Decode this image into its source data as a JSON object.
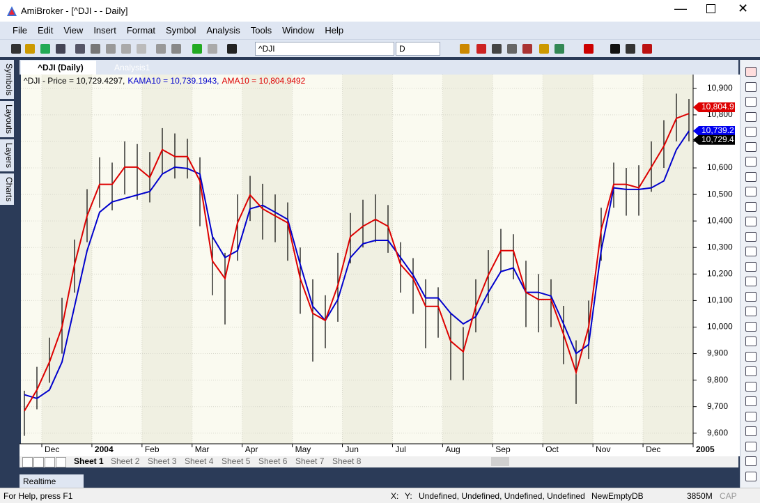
{
  "window": {
    "title": "AmiBroker - [^DJI -  - Daily]"
  },
  "menu": [
    "File",
    "Edit",
    "View",
    "Insert",
    "Format",
    "Symbol",
    "Analysis",
    "Tools",
    "Window",
    "Help"
  ],
  "toolbar": {
    "symbol": "^DJI",
    "interval": "D"
  },
  "side_tabs": [
    "Symbols",
    "Layouts",
    "Layers",
    "Charts"
  ],
  "tabs": [
    "^DJI (Daily)",
    "Analysis1"
  ],
  "chart_data": {
    "type": "line",
    "header": [
      "^DJI - Price = 10,729.4297,",
      "KAMA10 = 10,739.1943,",
      "AMA10 = 10,804.9492"
    ],
    "header_colors": [
      "#000000",
      "#0000cc",
      "#dd0000"
    ],
    "ylim": [
      9560,
      10952
    ],
    "yticks": [
      {
        "value": 9600,
        "label": "9,600"
      },
      {
        "value": 9700,
        "label": "9,700"
      },
      {
        "value": 9800,
        "label": "9,800"
      },
      {
        "value": 9900,
        "label": "9,900"
      },
      {
        "value": 10000,
        "label": "10,000"
      },
      {
        "value": 10100,
        "label": "10,100"
      },
      {
        "value": 10200,
        "label": "10,200"
      },
      {
        "value": 10300,
        "label": "10,300"
      },
      {
        "value": 10400,
        "label": "10,400"
      },
      {
        "value": 10500,
        "label": "10,500"
      },
      {
        "value": 10600,
        "label": "10,600"
      },
      {
        "value": 10700,
        "label": "10,700"
      },
      {
        "value": 10800,
        "label": "10,800"
      },
      {
        "value": 10900,
        "label": "10,900"
      }
    ],
    "x_labels": [
      "Dec",
      "2004",
      "Feb",
      "Mar",
      "Apr",
      "May",
      "Jun",
      "Jul",
      "Aug",
      "Sep",
      "Oct",
      "Nov",
      "Dec",
      "2005"
    ],
    "grid": true,
    "bar_color": "#000000",
    "high": [
      9760,
      9850,
      9960,
      10110,
      10330,
      10520,
      10640,
      10620,
      10700,
      10690,
      10660,
      10750,
      10730,
      10710,
      10640,
      10350,
      10280,
      10500,
      10570,
      10540,
      10500,
      10470,
      10300,
      10180,
      10120,
      10280,
      10430,
      10480,
      10500,
      10460,
      10320,
      10260,
      10180,
      10150,
      10050,
      10000,
      10180,
      10290,
      10370,
      10350,
      10250,
      10200,
      10180,
      10080,
      9950,
      10100,
      10450,
      10620,
      10600,
      10610,
      10700,
      10780,
      10880,
      10860
    ],
    "low": [
      9590,
      9690,
      9790,
      9900,
      10130,
      10320,
      10450,
      10440,
      10500,
      10480,
      10470,
      10580,
      10560,
      10560,
      10380,
      10120,
      10010,
      10250,
      10400,
      10330,
      10320,
      10250,
      10050,
      9870,
      9920,
      10020,
      10240,
      10300,
      10320,
      10280,
      10130,
      10050,
      9920,
      9960,
      9800,
      9800,
      9980,
      10090,
      10210,
      10180,
      10000,
      9980,
      10000,
      9860,
      9710,
      9880,
      10250,
      10450,
      10420,
      10420,
      10510,
      10600,
      10700,
      10700
    ],
    "series": [
      {
        "color": "#0000cc",
        "values": [
          9745,
          9731,
          9763,
          9868,
          10078,
          10288,
          10433,
          10472,
          10485,
          10498,
          10511,
          10577,
          10603,
          10598,
          10577,
          10341,
          10262,
          10288,
          10446,
          10459,
          10433,
          10406,
          10236,
          10078,
          10025,
          10104,
          10262,
          10314,
          10327,
          10327,
          10262,
          10196,
          10110,
          10110,
          10052,
          10012,
          10039,
          10131,
          10209,
          10223,
          10131,
          10131,
          10117,
          10012,
          9900,
          9934,
          10288,
          10525,
          10519,
          10519,
          10525,
          10551,
          10669,
          10739
        ]
      },
      {
        "color": "#dd0000",
        "values": [
          9684,
          9763,
          9868,
          10000,
          10236,
          10419,
          10538,
          10538,
          10603,
          10603,
          10564,
          10669,
          10643,
          10643,
          10551,
          10249,
          10183,
          10393,
          10498,
          10446,
          10419,
          10393,
          10183,
          10052,
          10025,
          10157,
          10341,
          10380,
          10406,
          10380,
          10236,
          10183,
          10078,
          10078,
          9947,
          9907,
          10078,
          10196,
          10288,
          10288,
          10131,
          10104,
          10104,
          9973,
          9829,
          10000,
          10367,
          10538,
          10538,
          10525,
          10603,
          10682,
          10787,
          10805
        ]
      }
    ],
    "value_boxes": [
      {
        "value": 10804.9,
        "label": "10,804.9",
        "color": "#dd0000"
      },
      {
        "value": 10739.2,
        "label": "10,739.2",
        "color": "#0000ee"
      },
      {
        "value": 10729.4,
        "label": "10,729.4",
        "color": "#000000"
      }
    ]
  },
  "sheets": [
    "Sheet 1",
    "Sheet 2",
    "Sheet 3",
    "Sheet 4",
    "Sheet 5",
    "Sheet 6",
    "Sheet 7",
    "Sheet 8"
  ],
  "bottom_tab": "Realtime Quote",
  "status": {
    "help": "For Help, press F1",
    "x": "X:",
    "y": "Y:",
    "info": "Undefined, Undefined, Undefined, Undefined",
    "db": "NewEmptyDB",
    "mem": "3850M",
    "cap": "CAP"
  }
}
